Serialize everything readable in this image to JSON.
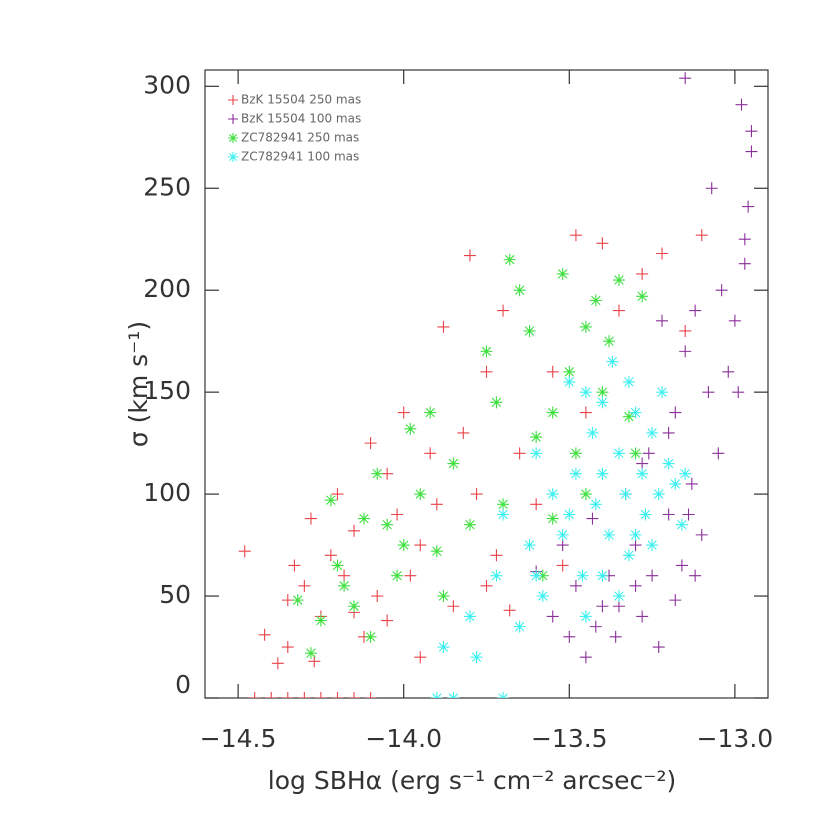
{
  "chart_data": {
    "type": "scatter",
    "x_label": "log SBHα (erg s⁻¹ cm⁻² arcsec⁻²)",
    "y_label": "σ (km s⁻¹)",
    "xlim": [
      -14.6,
      -12.9
    ],
    "ylim": [
      0,
      308
    ],
    "xticks": [
      {
        "value": -14.5,
        "label": "−14.5"
      },
      {
        "value": -14,
        "label": "−14.0"
      },
      {
        "value": -13.5,
        "label": "−13.5"
      },
      {
        "value": -13,
        "label": "−13.0"
      }
    ],
    "yticks": [
      0,
      50,
      100,
      150,
      200,
      250,
      300
    ],
    "legend": "upper left",
    "series": [
      {
        "name": "BzK 15504 250 mas",
        "color": "#e8434a",
        "marker": "plus",
        "x": [
          -14.48,
          -14.42,
          -14.38,
          -14.35,
          -14.33,
          -14.3,
          -14.28,
          -14.25,
          -14.22,
          -14.2,
          -14.18,
          -14.15,
          -14.12,
          -14.1,
          -14.08,
          -14.05,
          -14.02,
          -14.0,
          -13.98,
          -13.95,
          -13.92,
          -13.9,
          -13.88,
          -13.85,
          -13.82,
          -13.8,
          -13.78,
          -13.75,
          -13.72,
          -13.7,
          -13.65,
          -13.6,
          -13.55,
          -13.52,
          -13.48,
          -13.45,
          -13.4,
          -13.35,
          -13.28,
          -13.22,
          -13.15,
          -13.1,
          -14.35,
          -14.27,
          -14.15,
          -14.4,
          -14.3,
          -14.2,
          -14.1,
          -14.25,
          -14.45,
          -14.15,
          -14.35,
          -13.95,
          -14.05,
          -13.75,
          -13.68
        ],
        "values": [
          72,
          31,
          17,
          48,
          65,
          55,
          88,
          40,
          70,
          100,
          60,
          82,
          30,
          125,
          50,
          110,
          90,
          140,
          60,
          75,
          120,
          95,
          182,
          45,
          130,
          217,
          100,
          160,
          70,
          190,
          120,
          95,
          160,
          65,
          227,
          140,
          223,
          190,
          208,
          218,
          180,
          227,
          25,
          18,
          42,
          0,
          0,
          0,
          0,
          0,
          0,
          0,
          0,
          20,
          38,
          55,
          43
        ]
      },
      {
        "name": "BzK 15504 100 mas",
        "color": "#8b2f9a",
        "marker": "plus",
        "x": [
          -13.6,
          -13.55,
          -13.52,
          -13.5,
          -13.48,
          -13.45,
          -13.43,
          -13.4,
          -13.38,
          -13.36,
          -13.33,
          -13.3,
          -13.28,
          -13.26,
          -13.25,
          -13.23,
          -13.2,
          -13.18,
          -13.16,
          -13.15,
          -13.13,
          -13.12,
          -13.1,
          -13.08,
          -13.07,
          -13.05,
          -13.04,
          -13.02,
          -13.0,
          -12.98,
          -12.97,
          -12.96,
          -12.95,
          -12.95,
          -12.97,
          -12.99,
          -13.15,
          -13.22,
          -13.35,
          -13.42,
          -13.3,
          -13.18,
          -13.12,
          -13.28,
          -13.2,
          -13.14
        ],
        "values": [
          62,
          40,
          75,
          30,
          55,
          20,
          88,
          45,
          60,
          30,
          100,
          75,
          40,
          120,
          60,
          25,
          90,
          140,
          65,
          170,
          105,
          190,
          80,
          150,
          250,
          120,
          200,
          160,
          185,
          291,
          225,
          241,
          278,
          268,
          213,
          150,
          304,
          185,
          45,
          35,
          55,
          48,
          60,
          115,
          130,
          90
        ]
      },
      {
        "name": "ZC782941 250 mas",
        "color": "#3fe03f",
        "marker": "asterisk",
        "x": [
          -14.32,
          -14.28,
          -14.25,
          -14.22,
          -14.2,
          -14.18,
          -14.15,
          -14.12,
          -14.1,
          -14.05,
          -14.02,
          -13.98,
          -13.95,
          -13.92,
          -13.9,
          -13.88,
          -13.85,
          -13.8,
          -13.75,
          -13.72,
          -13.7,
          -13.68,
          -13.65,
          -13.62,
          -13.6,
          -13.58,
          -13.55,
          -13.52,
          -13.5,
          -13.48,
          -13.45,
          -13.42,
          -13.4,
          -13.38,
          -13.35,
          -13.32,
          -13.3,
          -13.28,
          -13.45,
          -13.55,
          -14.08,
          -14.0
        ],
        "values": [
          48,
          22,
          38,
          97,
          65,
          55,
          45,
          88,
          30,
          85,
          60,
          132,
          100,
          140,
          72,
          50,
          115,
          85,
          170,
          145,
          95,
          215,
          200,
          180,
          128,
          60,
          140,
          208,
          160,
          120,
          182,
          195,
          150,
          175,
          205,
          138,
          120,
          197,
          100,
          88,
          110,
          75
        ]
      },
      {
        "name": "ZC782941 100 mas",
        "color": "#3ff0f0",
        "marker": "asterisk",
        "x": [
          -13.9,
          -13.85,
          -13.7,
          -13.88,
          -13.8,
          -13.78,
          -13.72,
          -13.7,
          -13.65,
          -13.62,
          -13.6,
          -13.58,
          -13.55,
          -13.52,
          -13.5,
          -13.48,
          -13.46,
          -13.45,
          -13.43,
          -13.42,
          -13.4,
          -13.38,
          -13.37,
          -13.35,
          -13.33,
          -13.32,
          -13.3,
          -13.28,
          -13.27,
          -13.25,
          -13.23,
          -13.22,
          -13.2,
          -13.18,
          -13.16,
          -13.15,
          -13.4,
          -13.35,
          -13.3,
          -13.45,
          -13.6,
          -13.5,
          -13.4,
          -13.25,
          -13.32
        ],
        "values": [
          0,
          0,
          0,
          25,
          40,
          20,
          60,
          90,
          35,
          75,
          120,
          50,
          100,
          80,
          155,
          110,
          60,
          150,
          130,
          95,
          145,
          80,
          165,
          120,
          100,
          70,
          140,
          110,
          90,
          130,
          100,
          150,
          115,
          105,
          85,
          110,
          60,
          50,
          80,
          40,
          60,
          90,
          110,
          75,
          155
        ]
      }
    ]
  }
}
